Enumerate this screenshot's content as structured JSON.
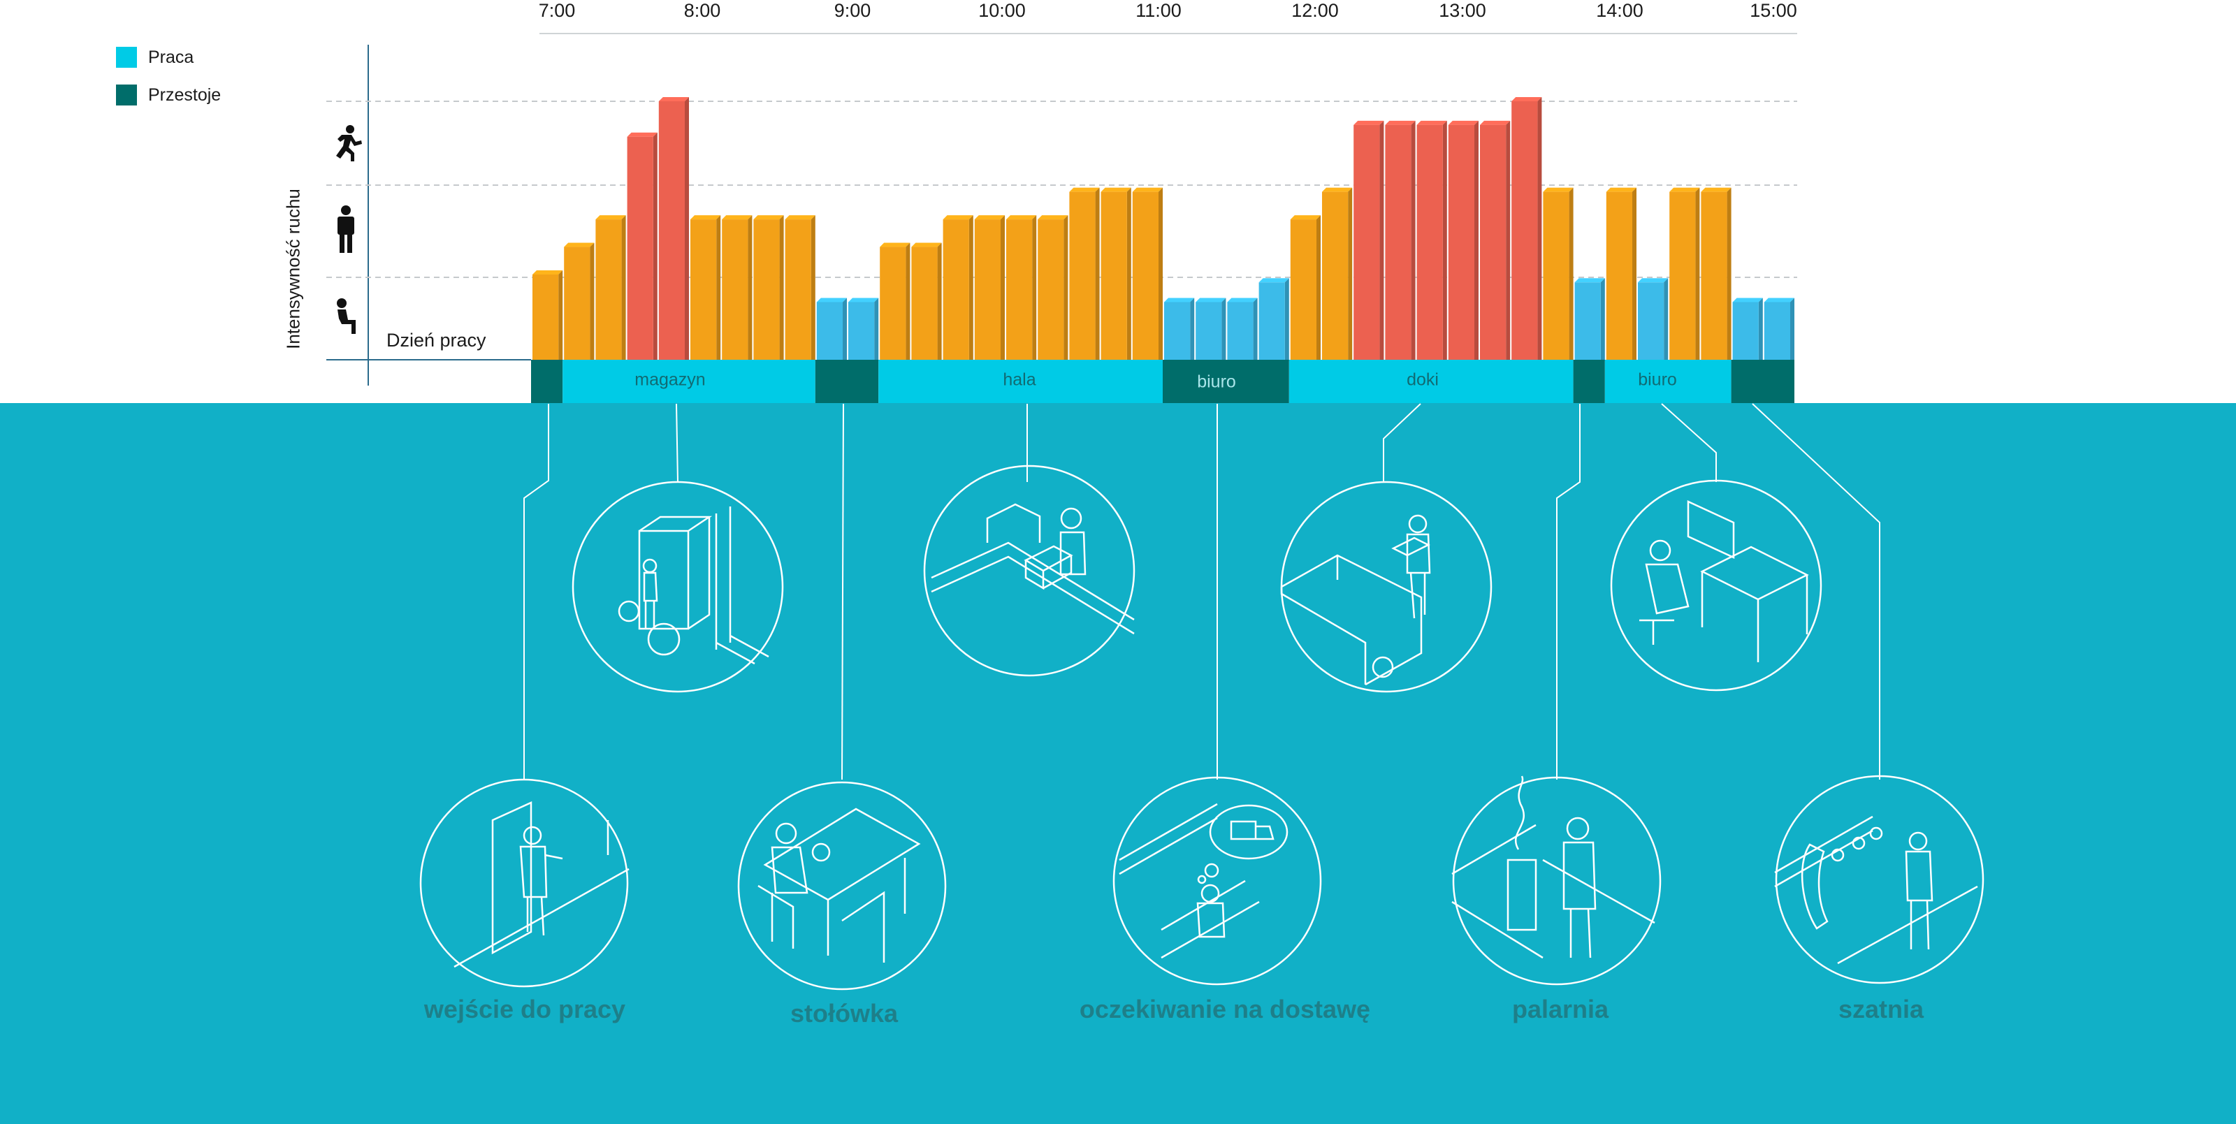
{
  "legend": {
    "items": [
      {
        "label": "Praca",
        "color": "#00cbe6"
      },
      {
        "label": "Przestoje",
        "color": "#006d6a"
      }
    ]
  },
  "colors": {
    "low": "#f3a118",
    "high": "#ec6150",
    "idle": "#3cbbe9",
    "panel": "#11b0c7"
  },
  "chart_data": {
    "type": "bar",
    "ylabel": "Intensywność ruchu",
    "baseline_label": "Dzień pracy",
    "intensity_levels": [
      "sitting-icon",
      "standing-icon",
      "running-icon"
    ],
    "x_range": [
      "7:00",
      "15:00"
    ],
    "hours": [
      "7:00",
      "8:00",
      "9:00",
      "10:00",
      "11:00",
      "12:00",
      "13:00",
      "14:00",
      "15:00"
    ],
    "ylim": [
      0,
      4
    ],
    "series": [
      {
        "start": "7:00",
        "intensity": 1.1,
        "state": "low"
      },
      {
        "start": "7:12",
        "intensity": 1.45,
        "state": "low"
      },
      {
        "start": "7:24",
        "intensity": 1.8,
        "state": "low"
      },
      {
        "start": "7:36",
        "intensity": 2.85,
        "state": "high"
      },
      {
        "start": "7:48",
        "intensity": 3.3,
        "state": "high"
      },
      {
        "start": "8:00",
        "intensity": 1.8,
        "state": "low"
      },
      {
        "start": "8:12",
        "intensity": 1.8,
        "state": "low"
      },
      {
        "start": "8:24",
        "intensity": 1.8,
        "state": "low"
      },
      {
        "start": "8:36",
        "intensity": 1.8,
        "state": "low"
      },
      {
        "start": "8:48",
        "intensity": 0.75,
        "state": "idle"
      },
      {
        "start": "9:00",
        "intensity": 0.75,
        "state": "idle"
      },
      {
        "start": "9:12",
        "intensity": 1.45,
        "state": "low"
      },
      {
        "start": "9:24",
        "intensity": 1.45,
        "state": "low"
      },
      {
        "start": "9:36",
        "intensity": 1.8,
        "state": "low"
      },
      {
        "start": "9:48",
        "intensity": 1.8,
        "state": "low"
      },
      {
        "start": "10:00",
        "intensity": 1.8,
        "state": "low"
      },
      {
        "start": "10:12",
        "intensity": 1.8,
        "state": "low"
      },
      {
        "start": "10:24",
        "intensity": 2.15,
        "state": "low"
      },
      {
        "start": "10:36",
        "intensity": 2.15,
        "state": "low"
      },
      {
        "start": "10:48",
        "intensity": 2.15,
        "state": "low"
      },
      {
        "start": "11:00",
        "intensity": 0.75,
        "state": "idle"
      },
      {
        "start": "11:12",
        "intensity": 0.75,
        "state": "idle"
      },
      {
        "start": "11:24",
        "intensity": 0.75,
        "state": "idle"
      },
      {
        "start": "11:36",
        "intensity": 1.0,
        "state": "idle"
      },
      {
        "start": "11:48",
        "intensity": 1.8,
        "state": "low"
      },
      {
        "start": "12:00",
        "intensity": 2.15,
        "state": "low"
      },
      {
        "start": "12:12",
        "intensity": 3.0,
        "state": "high"
      },
      {
        "start": "12:24",
        "intensity": 3.0,
        "state": "high"
      },
      {
        "start": "12:36",
        "intensity": 3.0,
        "state": "high"
      },
      {
        "start": "12:48",
        "intensity": 3.0,
        "state": "high"
      },
      {
        "start": "13:00",
        "intensity": 3.0,
        "state": "high"
      },
      {
        "start": "13:12",
        "intensity": 3.3,
        "state": "high"
      },
      {
        "start": "13:24",
        "intensity": 2.15,
        "state": "low"
      },
      {
        "start": "13:36",
        "intensity": 1.0,
        "state": "idle"
      },
      {
        "start": "13:48",
        "intensity": 2.15,
        "state": "low"
      },
      {
        "start": "14:00",
        "intensity": 1.0,
        "state": "idle"
      },
      {
        "start": "14:12",
        "intensity": 2.15,
        "state": "low"
      },
      {
        "start": "14:24",
        "intensity": 2.15,
        "state": "low"
      },
      {
        "start": "14:36",
        "intensity": 0.75,
        "state": "idle"
      },
      {
        "start": "14:48",
        "intensity": 0.75,
        "state": "idle"
      }
    ],
    "zones": [
      {
        "label": "",
        "from": "7:00",
        "to": "7:12",
        "kind": "Przestoje"
      },
      {
        "label": "magazyn",
        "from": "7:12",
        "to": "8:48",
        "kind": "Praca"
      },
      {
        "label": "",
        "from": "8:48",
        "to": "9:12",
        "kind": "Przestoje"
      },
      {
        "label": "hala",
        "from": "9:12",
        "to": "11:00",
        "kind": "Praca"
      },
      {
        "label": "biuro",
        "from": "11:00",
        "to": "11:48",
        "kind": "Przestoje"
      },
      {
        "label": "doki",
        "from": "11:48",
        "to": "13:36",
        "kind": "Praca"
      },
      {
        "label": "",
        "from": "13:36",
        "to": "13:48",
        "kind": "Przestoje"
      },
      {
        "label": "biuro",
        "from": "13:48",
        "to": "14:36",
        "kind": "Praca"
      },
      {
        "label": "",
        "from": "14:36",
        "to": "15:00",
        "kind": "Przestoje"
      }
    ]
  },
  "places": {
    "top": [
      {
        "icon": "forklift-scene-icon"
      },
      {
        "icon": "packing-scene-icon"
      },
      {
        "icon": "truck-loading-scene-icon"
      },
      {
        "icon": "office-desk-scene-icon"
      }
    ],
    "bottom": [
      {
        "label": "wejście do pracy",
        "icon": "entrance-scene-icon"
      },
      {
        "label": "stołówka",
        "icon": "canteen-scene-icon"
      },
      {
        "label": "oczekiwanie na dostawę",
        "icon": "waiting-scene-icon"
      },
      {
        "label": "palarnia",
        "icon": "smoking-area-scene-icon"
      },
      {
        "label": "szatnia",
        "icon": "locker-room-scene-icon"
      }
    ]
  }
}
